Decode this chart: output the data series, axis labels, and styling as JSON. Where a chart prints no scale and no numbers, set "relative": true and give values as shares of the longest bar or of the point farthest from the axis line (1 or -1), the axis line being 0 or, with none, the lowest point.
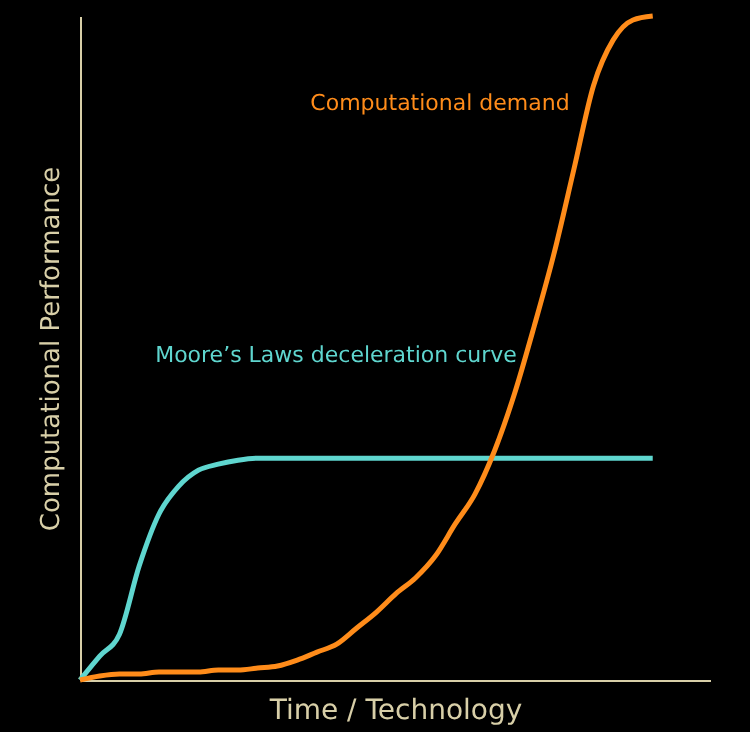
{
  "chart_data": {
    "type": "line",
    "xlabel": "Time / Technology",
    "ylabel": "Computational Performance",
    "relative": true,
    "legend": false,
    "marker": "none",
    "line_style": "solid",
    "categories": [
      null,
      null,
      null,
      null,
      null,
      null,
      null,
      null,
      null,
      null,
      null,
      null,
      null,
      null,
      null,
      null,
      null,
      null,
      null,
      null,
      null,
      null,
      null,
      null,
      null,
      null,
      null,
      null,
      null,
      null
    ],
    "series": [
      {
        "name": "Moore’s Laws deceleration curve",
        "color": "#5fd6cf",
        "values": [
          0,
          0.036,
          0.069,
          0.172,
          0.25,
          0.292,
          0.316,
          0.325,
          0.331,
          0.334,
          0.334,
          0.334,
          0.334,
          0.334,
          0.334,
          0.334,
          0.334,
          0.334,
          0.334,
          0.334,
          0.334,
          0.334,
          0.334,
          0.334,
          0.334,
          0.334,
          0.334,
          0.334,
          0.334,
          0.334
        ]
      },
      {
        "name": "Computational demand",
        "color": "#ff8c1a",
        "values": [
          0,
          0.006,
          0.009,
          0.009,
          0.012,
          0.012,
          0.012,
          0.015,
          0.015,
          0.018,
          0.021,
          0.03,
          0.042,
          0.054,
          0.078,
          0.102,
          0.13,
          0.154,
          0.187,
          0.235,
          0.28,
          0.346,
          0.431,
          0.533,
          0.642,
          0.768,
          0.895,
          0.964,
          0.994,
          1
        ]
      }
    ]
  }
}
